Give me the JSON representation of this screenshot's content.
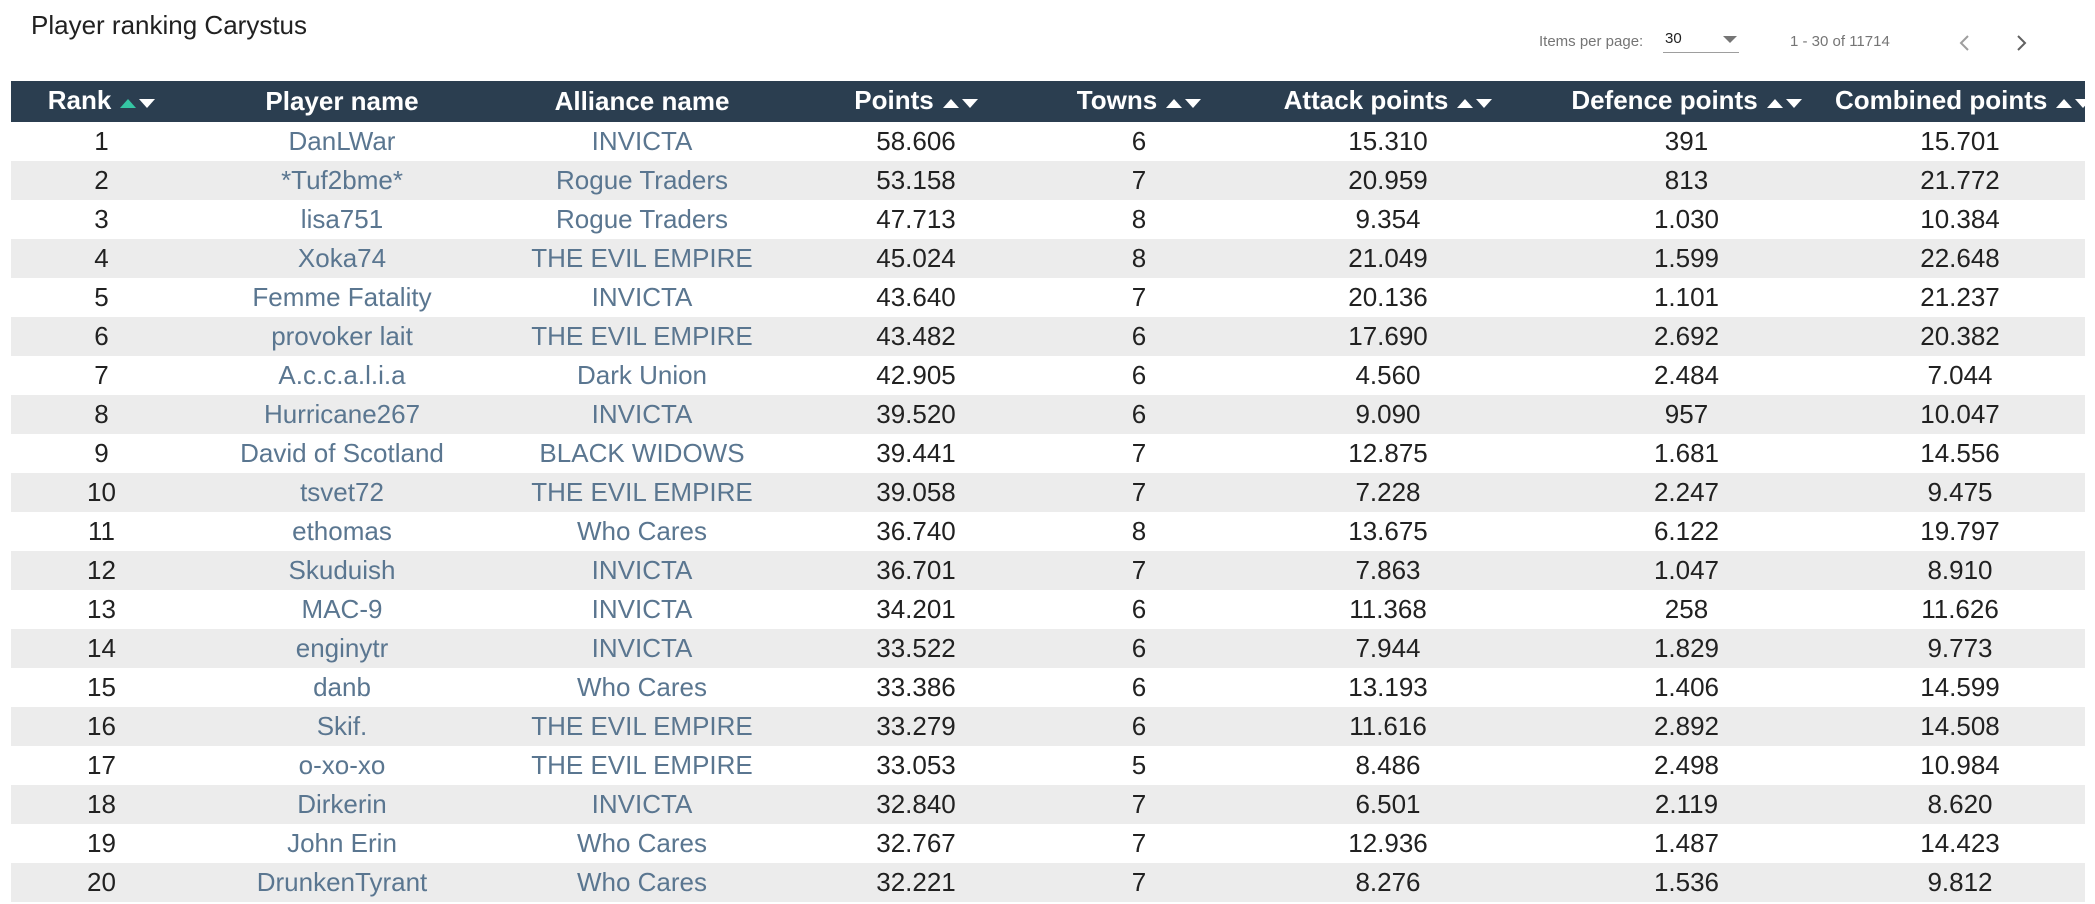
{
  "page": {
    "title": "Player ranking Carystus"
  },
  "paginator": {
    "items_per_page_label": "Items per page:",
    "items_per_page_value": "30",
    "range_label": "1 - 30 of 11714",
    "prev_icon": "chevron-left-icon",
    "next_icon": "chevron-right-icon"
  },
  "colors": {
    "header_bg": "#2b3e50",
    "active_sort": "#35c5a4",
    "link": "#5a7690",
    "row_alt": "#ececec"
  },
  "table": {
    "columns": [
      {
        "key": "rank",
        "label": "Rank",
        "sort": "asc"
      },
      {
        "key": "player",
        "label": "Player name",
        "sort": null
      },
      {
        "key": "alliance",
        "label": "Alliance name",
        "sort": null
      },
      {
        "key": "points",
        "label": "Points",
        "sort": "none"
      },
      {
        "key": "towns",
        "label": "Towns",
        "sort": "none"
      },
      {
        "key": "attack",
        "label": "Attack points",
        "sort": "none"
      },
      {
        "key": "defence",
        "label": "Defence points",
        "sort": "none"
      },
      {
        "key": "combined",
        "label": "Combined points",
        "sort": "none"
      }
    ],
    "rows": [
      {
        "rank": "1",
        "player": "DanLWar",
        "alliance": "INVICTA",
        "points": "58.606",
        "towns": "6",
        "attack": "15.310",
        "defence": "391",
        "combined": "15.701"
      },
      {
        "rank": "2",
        "player": "*Tuf2bme*",
        "alliance": "Rogue Traders",
        "points": "53.158",
        "towns": "7",
        "attack": "20.959",
        "defence": "813",
        "combined": "21.772"
      },
      {
        "rank": "3",
        "player": "lisa751",
        "alliance": "Rogue Traders",
        "points": "47.713",
        "towns": "8",
        "attack": "9.354",
        "defence": "1.030",
        "combined": "10.384"
      },
      {
        "rank": "4",
        "player": "Xoka74",
        "alliance": "THE EVIL EMPIRE",
        "points": "45.024",
        "towns": "8",
        "attack": "21.049",
        "defence": "1.599",
        "combined": "22.648"
      },
      {
        "rank": "5",
        "player": "Femme Fatality",
        "alliance": "INVICTA",
        "points": "43.640",
        "towns": "7",
        "attack": "20.136",
        "defence": "1.101",
        "combined": "21.237"
      },
      {
        "rank": "6",
        "player": "provoker lait",
        "alliance": "THE EVIL EMPIRE",
        "points": "43.482",
        "towns": "6",
        "attack": "17.690",
        "defence": "2.692",
        "combined": "20.382"
      },
      {
        "rank": "7",
        "player": "A.c.c.a.l.i.a",
        "alliance": "Dark Union",
        "points": "42.905",
        "towns": "6",
        "attack": "4.560",
        "defence": "2.484",
        "combined": "7.044"
      },
      {
        "rank": "8",
        "player": "Hurricane267",
        "alliance": "INVICTA",
        "points": "39.520",
        "towns": "6",
        "attack": "9.090",
        "defence": "957",
        "combined": "10.047"
      },
      {
        "rank": "9",
        "player": "David of Scotland",
        "alliance": "BLACK WIDOWS",
        "points": "39.441",
        "towns": "7",
        "attack": "12.875",
        "defence": "1.681",
        "combined": "14.556"
      },
      {
        "rank": "10",
        "player": "tsvet72",
        "alliance": "THE EVIL EMPIRE",
        "points": "39.058",
        "towns": "7",
        "attack": "7.228",
        "defence": "2.247",
        "combined": "9.475"
      },
      {
        "rank": "11",
        "player": "ethomas",
        "alliance": "Who Cares",
        "points": "36.740",
        "towns": "8",
        "attack": "13.675",
        "defence": "6.122",
        "combined": "19.797"
      },
      {
        "rank": "12",
        "player": "Skuduish",
        "alliance": "INVICTA",
        "points": "36.701",
        "towns": "7",
        "attack": "7.863",
        "defence": "1.047",
        "combined": "8.910"
      },
      {
        "rank": "13",
        "player": "MAC-9",
        "alliance": "INVICTA",
        "points": "34.201",
        "towns": "6",
        "attack": "11.368",
        "defence": "258",
        "combined": "11.626"
      },
      {
        "rank": "14",
        "player": "enginytr",
        "alliance": "INVICTA",
        "points": "33.522",
        "towns": "6",
        "attack": "7.944",
        "defence": "1.829",
        "combined": "9.773"
      },
      {
        "rank": "15",
        "player": "danb",
        "alliance": "Who Cares",
        "points": "33.386",
        "towns": "6",
        "attack": "13.193",
        "defence": "1.406",
        "combined": "14.599"
      },
      {
        "rank": "16",
        "player": "Skif.",
        "alliance": "THE EVIL EMPIRE",
        "points": "33.279",
        "towns": "6",
        "attack": "11.616",
        "defence": "2.892",
        "combined": "14.508"
      },
      {
        "rank": "17",
        "player": "o-xo-xo",
        "alliance": "THE EVIL EMPIRE",
        "points": "33.053",
        "towns": "5",
        "attack": "8.486",
        "defence": "2.498",
        "combined": "10.984"
      },
      {
        "rank": "18",
        "player": "Dirkerin",
        "alliance": "INVICTA",
        "points": "32.840",
        "towns": "7",
        "attack": "6.501",
        "defence": "2.119",
        "combined": "8.620"
      },
      {
        "rank": "19",
        "player": "John Erin",
        "alliance": "Who Cares",
        "points": "32.767",
        "towns": "7",
        "attack": "12.936",
        "defence": "1.487",
        "combined": "14.423"
      },
      {
        "rank": "20",
        "player": "DrunkenTyrant",
        "alliance": "Who Cares",
        "points": "32.221",
        "towns": "7",
        "attack": "8.276",
        "defence": "1.536",
        "combined": "9.812"
      }
    ]
  }
}
